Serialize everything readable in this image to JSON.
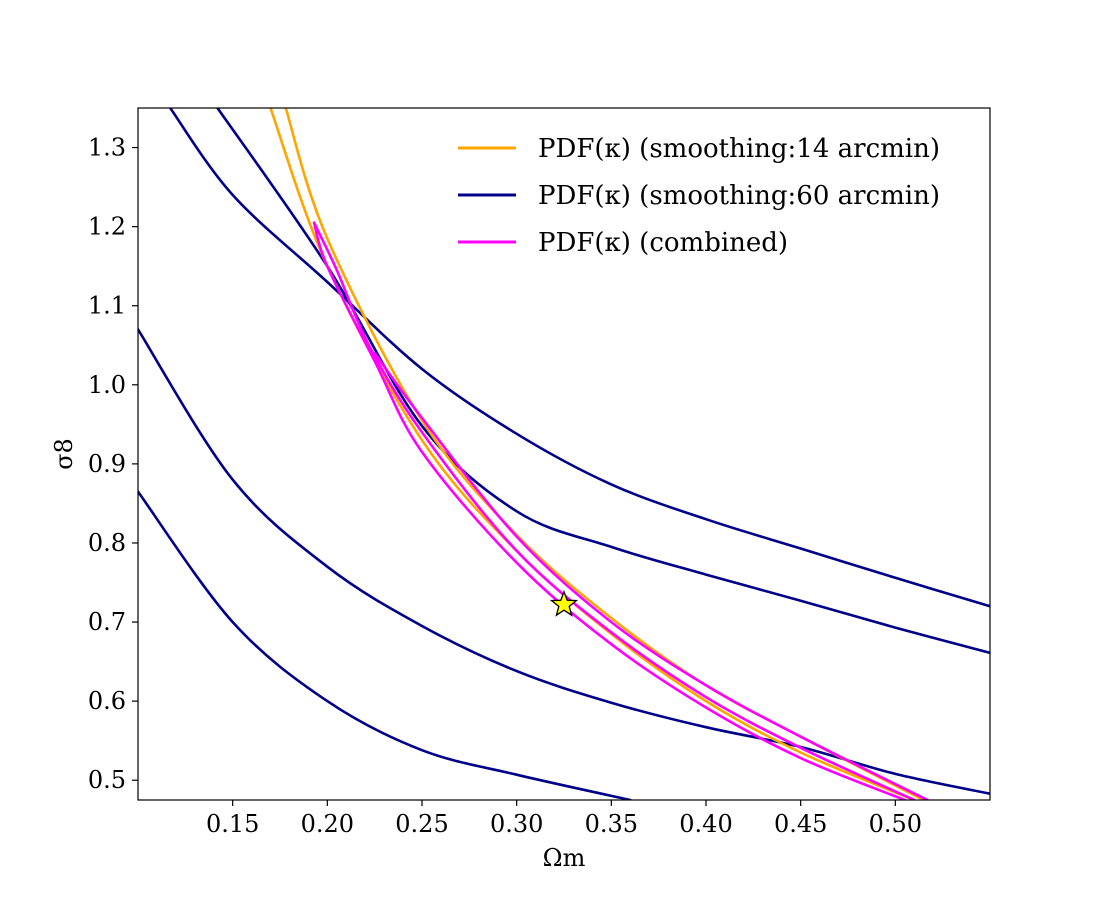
{
  "chart_data": {
    "type": "line",
    "xlabel": "Ωm",
    "ylabel": "σ8",
    "xlim": [
      0.1,
      0.55
    ],
    "ylim": [
      0.475,
      1.35
    ],
    "x_ticks": [
      "0.15",
      "0.20",
      "0.25",
      "0.30",
      "0.35",
      "0.40",
      "0.45",
      "0.50"
    ],
    "y_ticks": [
      "0.5",
      "0.6",
      "0.7",
      "0.8",
      "0.9",
      "1.0",
      "1.1",
      "1.2",
      "1.3"
    ],
    "legend_position": "top-right",
    "legend": [
      {
        "label": "PDF(κ) (smoothing:14 arcmin)",
        "color": "#FFA500"
      },
      {
        "label": "PDF(κ) (smoothing:60 arcmin)",
        "color": "#00008B"
      },
      {
        "label": "PDF(κ) (combined)",
        "color": "#FF00FF"
      }
    ],
    "series": [
      {
        "group": "smoothing-60",
        "color": "#00008B",
        "points": [
          [
            0.1,
            0.865
          ],
          [
            0.15,
            0.7
          ],
          [
            0.2,
            0.6
          ],
          [
            0.25,
            0.538
          ],
          [
            0.3,
            0.507
          ],
          [
            0.36,
            0.475
          ]
        ]
      },
      {
        "group": "smoothing-60",
        "color": "#00008B",
        "points": [
          [
            0.1,
            1.07
          ],
          [
            0.15,
            0.88
          ],
          [
            0.2,
            0.77
          ],
          [
            0.25,
            0.695
          ],
          [
            0.3,
            0.638
          ],
          [
            0.35,
            0.598
          ],
          [
            0.4,
            0.567
          ],
          [
            0.45,
            0.542
          ],
          [
            0.5,
            0.508
          ],
          [
            0.55,
            0.483
          ]
        ]
      },
      {
        "group": "smoothing-60",
        "color": "#00008B",
        "points": [
          [
            0.117,
            1.35
          ],
          [
            0.15,
            1.24
          ],
          [
            0.2,
            1.13
          ],
          [
            0.25,
            1.02
          ],
          [
            0.3,
            0.938
          ],
          [
            0.35,
            0.874
          ],
          [
            0.4,
            0.83
          ],
          [
            0.45,
            0.793
          ],
          [
            0.5,
            0.756
          ],
          [
            0.55,
            0.72
          ]
        ]
      },
      {
        "group": "smoothing-60",
        "color": "#00008B",
        "points": [
          [
            0.142,
            1.35
          ],
          [
            0.2,
            1.15
          ],
          [
            0.25,
            0.948
          ],
          [
            0.3,
            0.84
          ],
          [
            0.35,
            0.795
          ],
          [
            0.4,
            0.76
          ],
          [
            0.45,
            0.727
          ],
          [
            0.5,
            0.693
          ],
          [
            0.55,
            0.661
          ]
        ]
      },
      {
        "group": "smoothing-14",
        "color": "#FFA500",
        "points": [
          [
            0.17,
            1.35
          ],
          [
            0.2,
            1.15
          ],
          [
            0.25,
            0.93
          ],
          [
            0.3,
            0.79
          ],
          [
            0.35,
            0.685
          ],
          [
            0.4,
            0.6
          ],
          [
            0.45,
            0.535
          ],
          [
            0.51,
            0.475
          ]
        ]
      },
      {
        "group": "smoothing-14",
        "color": "#FFA500",
        "points": [
          [
            0.178,
            1.35
          ],
          [
            0.2,
            1.185
          ],
          [
            0.25,
            0.955
          ],
          [
            0.3,
            0.81
          ],
          [
            0.35,
            0.705
          ],
          [
            0.4,
            0.62
          ],
          [
            0.45,
            0.555
          ],
          [
            0.515,
            0.475
          ]
        ]
      },
      {
        "group": "combined",
        "color": "#FF00FF",
        "points": [
          [
            0.193,
            1.205
          ],
          [
            0.2,
            1.15
          ],
          [
            0.225,
            1.03
          ],
          [
            0.25,
            0.915
          ],
          [
            0.3,
            0.775
          ],
          [
            0.35,
            0.672
          ],
          [
            0.4,
            0.592
          ],
          [
            0.45,
            0.528
          ],
          [
            0.505,
            0.475
          ]
        ]
      },
      {
        "group": "combined",
        "color": "#FF00FF",
        "points": [
          [
            0.193,
            1.205
          ],
          [
            0.205,
            1.145
          ],
          [
            0.222,
            1.05
          ],
          [
            0.25,
            0.94
          ],
          [
            0.3,
            0.79
          ],
          [
            0.35,
            0.687
          ],
          [
            0.4,
            0.605
          ],
          [
            0.45,
            0.541
          ],
          [
            0.51,
            0.475
          ]
        ]
      },
      {
        "group": "combined",
        "color": "#FF00FF",
        "points": [
          [
            0.225,
            1.04
          ],
          [
            0.25,
            0.958
          ],
          [
            0.3,
            0.808
          ],
          [
            0.35,
            0.7
          ],
          [
            0.4,
            0.62
          ],
          [
            0.45,
            0.555
          ],
          [
            0.517,
            0.475
          ]
        ]
      }
    ],
    "marker": {
      "shape": "star",
      "x": 0.325,
      "y": 0.722,
      "fill": "#FFFF00",
      "stroke": "#000000"
    }
  }
}
